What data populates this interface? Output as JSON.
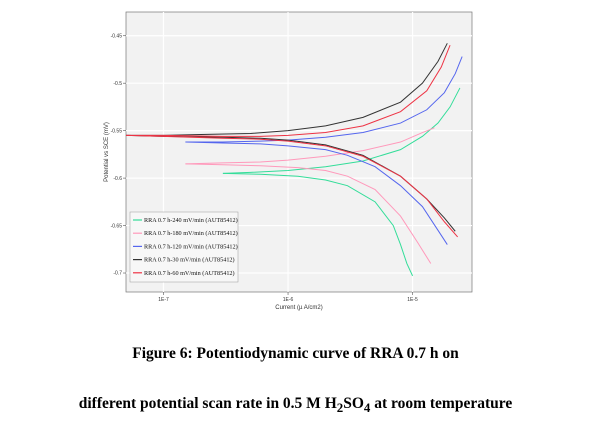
{
  "chart_data": {
    "type": "line",
    "xlabel": "Current (µ A/cm2)",
    "ylabel": "Potential vs SCE (mV)",
    "x_scale": "log",
    "xlim": [
      5e-08,
      3e-05
    ],
    "ylim": [
      -0.72,
      -0.425
    ],
    "x_ticks": [
      {
        "value": 1e-07,
        "label": "1E-7"
      },
      {
        "value": 1e-06,
        "label": "1E-6"
      },
      {
        "value": 1e-05,
        "label": "1E-5"
      }
    ],
    "y_ticks": [
      {
        "value": -0.45,
        "label": "-0.45"
      },
      {
        "value": -0.5,
        "label": "-0.5"
      },
      {
        "value": -0.55,
        "label": "-0.55"
      },
      {
        "value": -0.6,
        "label": "-0.6"
      },
      {
        "value": -0.65,
        "label": "-0.65"
      },
      {
        "value": -0.7,
        "label": "-0.7"
      }
    ],
    "grid": true,
    "legend_position": "bottom-left",
    "series": [
      {
        "name": "RRA 0.7 h-240 mV/min (AUT85412)",
        "color": "#33dd99",
        "anodic": {
          "x": [
            3e-07,
            5e-07,
            1e-06,
            2e-06,
            4e-06,
            8e-06,
            1.2e-05,
            1.6e-05,
            2e-05,
            2.4e-05
          ],
          "y": [
            -0.595,
            -0.594,
            -0.592,
            -0.588,
            -0.582,
            -0.57,
            -0.556,
            -0.542,
            -0.525,
            -0.505
          ]
        },
        "cathodic": {
          "x": [
            3e-07,
            6e-07,
            1.2e-06,
            2e-06,
            3e-06,
            5e-06,
            7e-06,
            8e-06,
            9e-06,
            1e-05
          ],
          "y": [
            -0.595,
            -0.596,
            -0.598,
            -0.602,
            -0.608,
            -0.625,
            -0.65,
            -0.67,
            -0.69,
            -0.703
          ]
        }
      },
      {
        "name": "RRA 0.7 h-180 mV/min (AUT85412)",
        "color": "#ff99bb",
        "anodic": {
          "x": [
            1.5e-07,
            3e-07,
            6e-07,
            1e-06,
            2e-06,
            4e-06,
            8e-06,
            1.2e-05,
            1.5e-05
          ],
          "y": [
            -0.585,
            -0.584,
            -0.583,
            -0.581,
            -0.577,
            -0.571,
            -0.562,
            -0.552,
            -0.547
          ]
        },
        "cathodic": {
          "x": [
            1.5e-07,
            3e-07,
            6e-07,
            1.2e-06,
            2e-06,
            3e-06,
            5e-06,
            8e-06,
            1.1e-05,
            1.4e-05
          ],
          "y": [
            -0.585,
            -0.586,
            -0.587,
            -0.589,
            -0.592,
            -0.598,
            -0.612,
            -0.64,
            -0.668,
            -0.69
          ]
        }
      },
      {
        "name": "RRA 0.7 h-120 mV/min (AUT85412)",
        "color": "#5566ee",
        "anodic": {
          "x": [
            1.5e-07,
            3e-07,
            6e-07,
            1e-06,
            2e-06,
            4e-06,
            8e-06,
            1.3e-05,
            1.8e-05,
            2.2e-05,
            2.5e-05
          ],
          "y": [
            -0.562,
            -0.562,
            -0.561,
            -0.56,
            -0.557,
            -0.552,
            -0.542,
            -0.528,
            -0.51,
            -0.49,
            -0.472
          ]
        },
        "cathodic": {
          "x": [
            1.5e-07,
            3e-07,
            6e-07,
            1e-06,
            2e-06,
            3e-06,
            5e-06,
            8e-06,
            1.2e-05,
            1.6e-05,
            1.9e-05
          ],
          "y": [
            -0.562,
            -0.563,
            -0.564,
            -0.566,
            -0.57,
            -0.576,
            -0.588,
            -0.608,
            -0.63,
            -0.655,
            -0.67
          ]
        }
      },
      {
        "name": "RRA 0.7 h-30 mV/min (AUT85412)",
        "color": "#333333",
        "anodic": {
          "x": [
            5e-08,
            1e-07,
            2e-07,
            5e-07,
            1e-06,
            2e-06,
            4e-06,
            8e-06,
            1.2e-05,
            1.6e-05,
            1.9e-05
          ],
          "y": [
            -0.555,
            -0.555,
            -0.554,
            -0.553,
            -0.55,
            -0.545,
            -0.536,
            -0.52,
            -0.5,
            -0.477,
            -0.458
          ]
        },
        "cathodic": {
          "x": [
            5e-08,
            1e-07,
            3e-07,
            6e-07,
            1e-06,
            2e-06,
            4e-06,
            8e-06,
            1.3e-05,
            1.8e-05,
            2.2e-05
          ],
          "y": [
            -0.555,
            -0.556,
            -0.557,
            -0.558,
            -0.56,
            -0.565,
            -0.576,
            -0.598,
            -0.622,
            -0.642,
            -0.656
          ]
        }
      },
      {
        "name": "RRA 0.7 h-60 mV/min (AUT85412)",
        "color": "#ee3344",
        "anodic": {
          "x": [
            5e-08,
            1e-07,
            3e-07,
            6e-07,
            1e-06,
            2e-06,
            4e-06,
            8e-06,
            1.3e-05,
            1.7e-05,
            2e-05
          ],
          "y": [
            -0.555,
            -0.555,
            -0.556,
            -0.556,
            -0.555,
            -0.552,
            -0.545,
            -0.53,
            -0.508,
            -0.483,
            -0.46
          ]
        },
        "cathodic": {
          "x": [
            5e-08,
            1e-07,
            3e-07,
            6e-07,
            1e-06,
            2e-06,
            4e-06,
            8e-06,
            1.3e-05,
            1.8e-05,
            2.3e-05
          ],
          "y": [
            -0.555,
            -0.556,
            -0.558,
            -0.559,
            -0.561,
            -0.566,
            -0.577,
            -0.598,
            -0.622,
            -0.646,
            -0.662
          ]
        }
      }
    ]
  },
  "caption": {
    "line1": "Figure 6: Potentiodynamic curve of RRA 0.7 h on",
    "line2_prefix": "different potential scan rate in 0.5 M H",
    "line2_sub1": "2",
    "line2_mid": "SO",
    "line2_sub2": "4",
    "line2_suffix": " at room temperature"
  }
}
